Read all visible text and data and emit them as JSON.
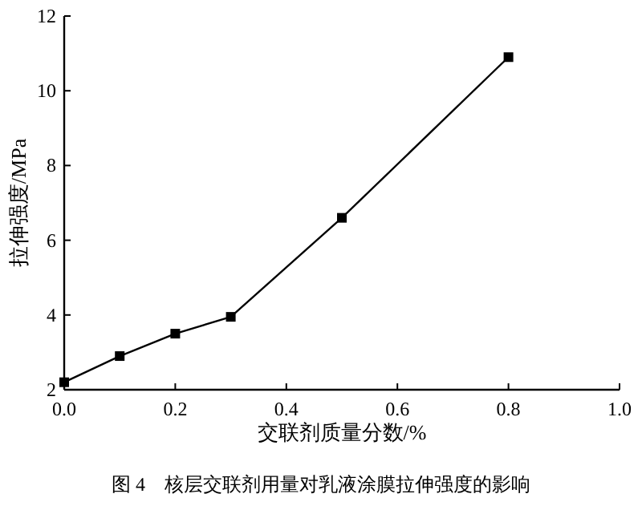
{
  "chart_data": {
    "type": "line",
    "xlabel": "交联剂质量分数/%",
    "ylabel": "拉伸强度/MPa",
    "annotations": [
      "图 4　核层交联剂用量对乳液涂膜拉伸强度的影响"
    ],
    "x": [
      0,
      0.1,
      0.2,
      0.3,
      0.5,
      0.8
    ],
    "series": [
      {
        "color": "#000000",
        "values": [
          2.2,
          2.9,
          3.5,
          3.95,
          6.6,
          10.9
        ]
      }
    ],
    "xlim": [
      0,
      1
    ],
    "xticks": [
      {
        "value": 0,
        "label": "0.0"
      },
      0.2,
      0.4,
      0.6,
      0.8,
      {
        "value": 1,
        "label": "1.0"
      }
    ],
    "ylim": [
      2,
      12
    ],
    "yticks": [
      2,
      4,
      6,
      8,
      10,
      12
    ],
    "grid": false,
    "marker": "square",
    "line_style": "solid"
  }
}
